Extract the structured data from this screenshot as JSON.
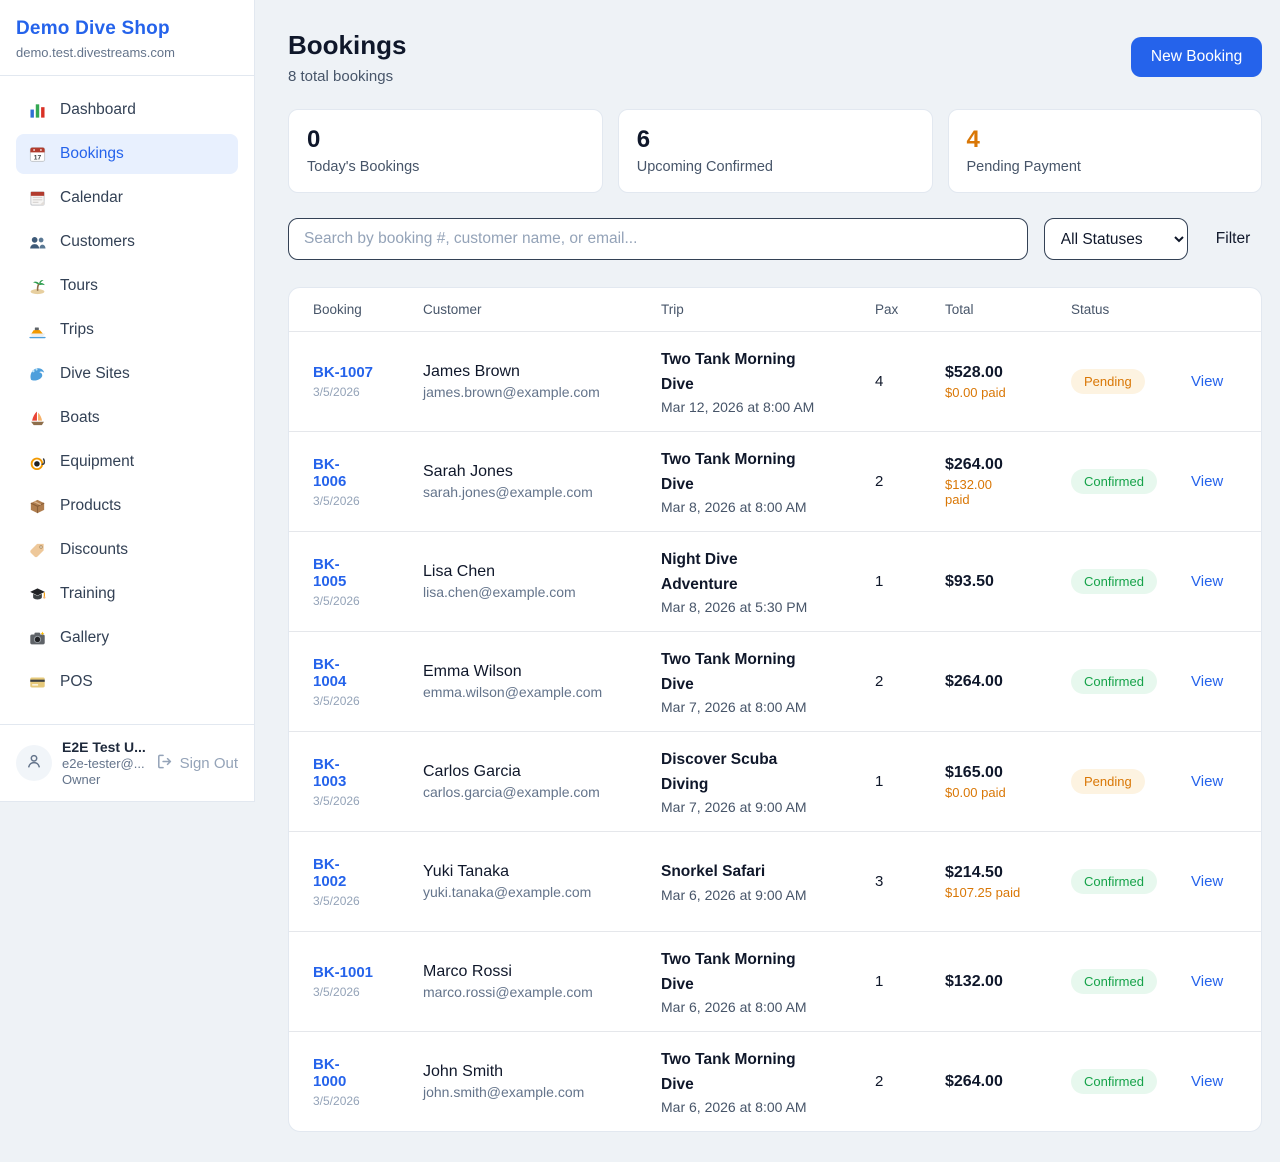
{
  "colors": {
    "accent": "#2563eb",
    "pending_text": "#d97706",
    "pending_bg": "#fdf3e1",
    "confirmed_text": "#16a34a",
    "confirmed_bg": "#e7f8ee",
    "paid": "#d97706"
  },
  "sidebar": {
    "title": "Demo Dive Shop",
    "domain": "demo.test.divestreams.com",
    "items": [
      {
        "label": "Dashboard",
        "icon": "dashboard-icon",
        "active": false
      },
      {
        "label": "Bookings",
        "icon": "bookings-icon",
        "active": true
      },
      {
        "label": "Calendar",
        "icon": "calendar-icon",
        "active": false
      },
      {
        "label": "Customers",
        "icon": "customers-icon",
        "active": false
      },
      {
        "label": "Tours",
        "icon": "tours-icon",
        "active": false
      },
      {
        "label": "Trips",
        "icon": "trips-icon",
        "active": false
      },
      {
        "label": "Dive Sites",
        "icon": "dive-sites-icon",
        "active": false
      },
      {
        "label": "Boats",
        "icon": "boats-icon",
        "active": false
      },
      {
        "label": "Equipment",
        "icon": "equipment-icon",
        "active": false
      },
      {
        "label": "Products",
        "icon": "products-icon",
        "active": false
      },
      {
        "label": "Discounts",
        "icon": "discounts-icon",
        "active": false
      },
      {
        "label": "Training",
        "icon": "training-icon",
        "active": false
      },
      {
        "label": "Gallery",
        "icon": "gallery-icon",
        "active": false
      },
      {
        "label": "POS",
        "icon": "pos-icon",
        "active": false
      }
    ],
    "user": {
      "name": "E2E Test U...",
      "email": "e2e-tester@...",
      "role": "Owner",
      "sign_out_label": "Sign Out"
    }
  },
  "header": {
    "title": "Bookings",
    "subtitle": "8 total bookings",
    "new_booking_label": "New Booking"
  },
  "stats": [
    {
      "value": "0",
      "label": "Today's Bookings"
    },
    {
      "value": "6",
      "label": "Upcoming Confirmed"
    },
    {
      "value": "4",
      "label": "Pending Payment",
      "color": "#d97706"
    }
  ],
  "toolbar": {
    "search_placeholder": "Search by booking #, customer name, or email...",
    "search_value": "",
    "status_filter": "All Statuses",
    "filter_label": "Filter"
  },
  "table": {
    "columns": [
      "Booking",
      "Customer",
      "Trip",
      "Pax",
      "Total",
      "Status"
    ],
    "view_label": "View",
    "rows": [
      {
        "number": "BK-1007",
        "number_two_line": false,
        "date": "3/5/2026",
        "customer": "James Brown",
        "email": "james.brown@example.com",
        "trip": "Two Tank Morning Dive",
        "trip_datetime": "Mar 12, 2026 at 8:00 AM",
        "pax": "4",
        "total": "$528.00",
        "paid": "$0.00 paid",
        "paid_two_line": false,
        "status": "Pending"
      },
      {
        "number": "BK-1006",
        "number_two_line": true,
        "date": "3/5/2026",
        "customer": "Sarah Jones",
        "email": "sarah.jones@example.com",
        "trip": "Two Tank Morning Dive",
        "trip_datetime": "Mar 8, 2026 at 8:00 AM",
        "pax": "2",
        "total": "$264.00",
        "paid": "$132.00 paid",
        "paid_two_line": true,
        "status": "Confirmed"
      },
      {
        "number": "BK-1005",
        "number_two_line": true,
        "date": "3/5/2026",
        "customer": "Lisa Chen",
        "email": "lisa.chen@example.com",
        "trip": "Night Dive Adventure",
        "trip_datetime": "Mar 8, 2026 at 5:30 PM",
        "pax": "1",
        "total": "$93.50",
        "paid": null,
        "paid_two_line": false,
        "status": "Confirmed"
      },
      {
        "number": "BK-1004",
        "number_two_line": true,
        "date": "3/5/2026",
        "customer": "Emma Wilson",
        "email": "emma.wilson@example.com",
        "trip": "Two Tank Morning Dive",
        "trip_datetime": "Mar 7, 2026 at 8:00 AM",
        "pax": "2",
        "total": "$264.00",
        "paid": null,
        "paid_two_line": false,
        "status": "Confirmed"
      },
      {
        "number": "BK-1003",
        "number_two_line": true,
        "date": "3/5/2026",
        "customer": "Carlos Garcia",
        "email": "carlos.garcia@example.com",
        "trip": "Discover Scuba Diving",
        "trip_datetime": "Mar 7, 2026 at 9:00 AM",
        "pax": "1",
        "total": "$165.00",
        "paid": "$0.00 paid",
        "paid_two_line": false,
        "status": "Pending"
      },
      {
        "number": "BK-1002",
        "number_two_line": true,
        "date": "3/5/2026",
        "customer": "Yuki Tanaka",
        "email": "yuki.tanaka@example.com",
        "trip": "Snorkel Safari",
        "trip_datetime": "Mar 6, 2026 at 9:00 AM",
        "pax": "3",
        "total": "$214.50",
        "paid": "$107.25 paid",
        "paid_two_line": false,
        "status": "Confirmed"
      },
      {
        "number": "BK-1001",
        "number_two_line": false,
        "date": "3/5/2026",
        "customer": "Marco Rossi",
        "email": "marco.rossi@example.com",
        "trip": "Two Tank Morning Dive",
        "trip_datetime": "Mar 6, 2026 at 8:00 AM",
        "pax": "1",
        "total": "$132.00",
        "paid": null,
        "paid_two_line": false,
        "status": "Confirmed"
      },
      {
        "number": "BK-1000",
        "number_two_line": true,
        "date": "3/5/2026",
        "customer": "John Smith",
        "email": "john.smith@example.com",
        "trip": "Two Tank Morning Dive",
        "trip_datetime": "Mar 6, 2026 at 8:00 AM",
        "pax": "2",
        "total": "$264.00",
        "paid": null,
        "paid_two_line": false,
        "status": "Confirmed"
      }
    ]
  }
}
